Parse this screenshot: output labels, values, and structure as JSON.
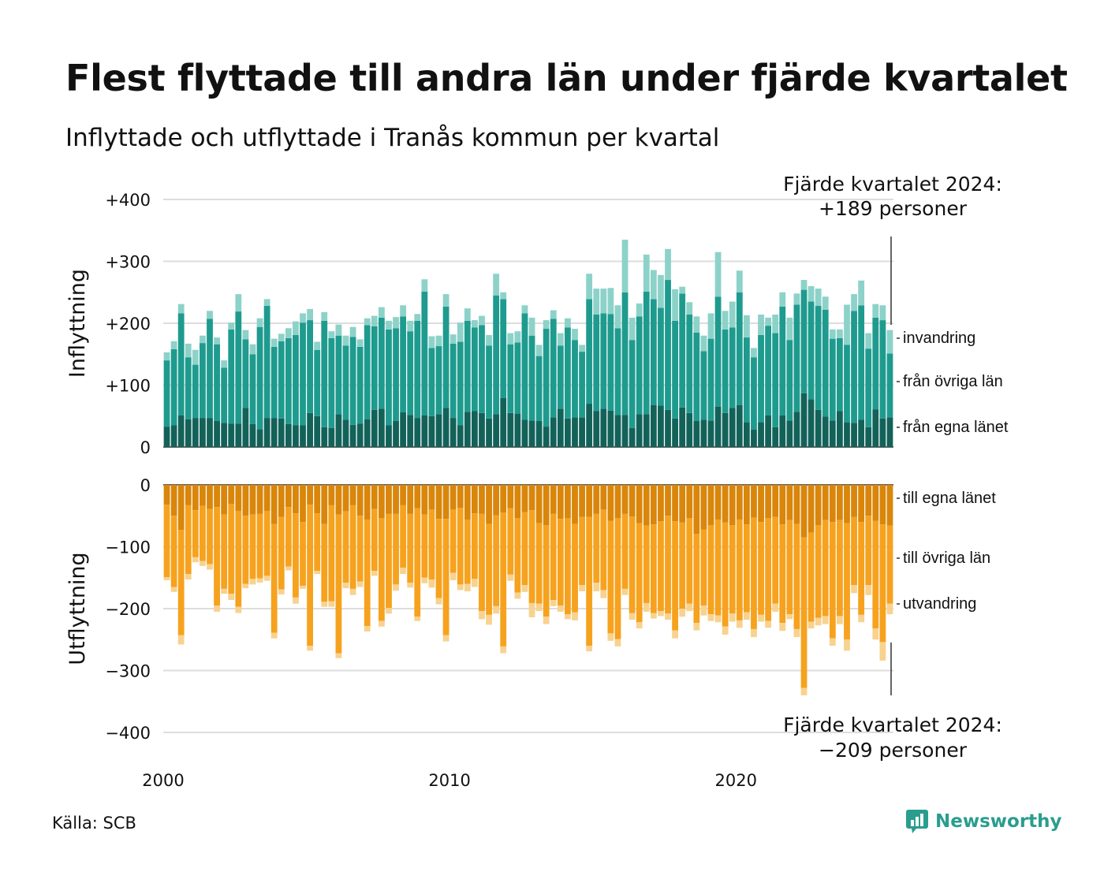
{
  "title": "Flest flyttade till andra län under fjärde kvartalet",
  "subtitle": "Inflyttade och utflyttade i Tranås kommun per kvartal",
  "source": "Källa: SCB",
  "logo": {
    "icon": "newsworthy-logo-icon",
    "text": "Newsworthy"
  },
  "colors": {
    "in_own": "#13625a",
    "in_other": "#1e9b8e",
    "in_imm": "#8dd2c9",
    "out_own": "#d9860b",
    "out_other": "#f6a21e",
    "out_emig": "#f8d28f",
    "grid": "#dddddd"
  },
  "chart_data": {
    "type": "bar",
    "stacked": true,
    "x_start_year": 2000,
    "periods_per_year": 4,
    "x_ticks": [
      "2000",
      "2010",
      "2020"
    ],
    "panels": [
      {
        "id": "in",
        "ylabel": "Inflyttning",
        "ylim": [
          0,
          400
        ],
        "y_ticks": [
          "0",
          "+100",
          "+200",
          "+300",
          "+400"
        ],
        "y_tick_values": [
          0,
          100,
          200,
          300,
          400
        ],
        "annotation": [
          "Fjärde kvartalet 2024:",
          "+189 personer"
        ],
        "series": [
          {
            "name": "från egna länet",
            "color": "#13625a",
            "values": [
              33,
              35,
              51,
              45,
              47,
              47,
              47,
              42,
              39,
              38,
              38,
              63,
              37,
              29,
              47,
              47,
              46,
              37,
              35,
              35,
              55,
              50,
              32,
              31,
              53,
              44,
              36,
              38,
              45,
              60,
              62,
              35,
              42,
              56,
              52,
              47,
              51,
              50,
              53,
              63,
              47,
              35,
              57,
              58,
              55,
              46,
              53,
              79,
              55,
              54,
              44,
              43,
              42,
              33,
              48,
              62,
              46,
              48,
              48,
              70,
              58,
              62,
              59,
              52,
              52,
              31,
              53,
              53,
              68,
              67,
              60,
              46,
              64,
              55,
              42,
              44,
              43,
              65,
              55,
              63,
              68,
              40,
              28,
              40,
              51,
              32,
              51,
              43,
              57,
              87,
              77,
              60,
              49,
              43,
              58,
              40,
              39,
              44,
              32,
              61,
              46,
              48
            ]
          },
          {
            "name": "från övriga län",
            "color": "#1e9b8e",
            "values": [
              107,
              123,
              165,
              100,
              86,
              121,
              160,
              124,
              89,
              152,
              181,
              111,
              113,
              165,
              181,
              115,
              125,
              139,
              146,
              166,
              150,
              107,
              172,
              145,
              127,
              120,
              142,
              124,
              152,
              135,
              147,
              155,
              150,
              155,
              135,
              157,
              200,
              110,
              110,
              164,
              120,
              135,
              147,
              135,
              142,
              118,
              192,
              160,
              111,
              115,
              172,
              137,
              105,
              158,
              159,
              102,
              147,
              125,
              106,
              169,
              156,
              154,
              156,
              140,
              198,
              142,
              158,
              198,
              171,
              158,
              210,
              158,
              184,
              159,
              143,
              111,
              132,
              178,
              135,
              130,
              182,
              137,
              117,
              141,
              145,
              152,
              176,
              130,
              173,
              167,
              158,
              168,
              173,
              132,
              118,
              125,
              181,
              185,
              127,
              148,
              159,
              103
            ]
          },
          {
            "name": "invandring",
            "color": "#8dd2c9",
            "values": [
              13,
              13,
              15,
              22,
              24,
              12,
              13,
              11,
              12,
              11,
              28,
              15,
              16,
              14,
              11,
              13,
              12,
              16,
              22,
              15,
              18,
              13,
              14,
              11,
              18,
              16,
              16,
              12,
              11,
              17,
              17,
              14,
              18,
              18,
              17,
              11,
              20,
              19,
              17,
              20,
              15,
              31,
              20,
              12,
              15,
              17,
              35,
              11,
              18,
              18,
              13,
              29,
              18,
              14,
              14,
              20,
              15,
              18,
              11,
              41,
              42,
              40,
              42,
              37,
              85,
              36,
              21,
              60,
              47,
              53,
              50,
              51,
              11,
              20,
              26,
              25,
              41,
              72,
              30,
              42,
              35,
              36,
              15,
              33,
              13,
              30,
              23,
              36,
              18,
              16,
              25,
              28,
              21,
              15,
              14,
              65,
              27,
              40,
              25,
              22,
              24,
              38
            ]
          }
        ]
      },
      {
        "id": "out",
        "ylabel": "Utflyttning",
        "ylim": [
          -400,
          0
        ],
        "y_ticks": [
          "0",
          "−100",
          "−200",
          "−300",
          "−400"
        ],
        "y_tick_values": [
          0,
          -100,
          -200,
          -300,
          -400
        ],
        "annotation": [
          "Fjärde kvartalet 2024:",
          "−209 personer"
        ],
        "series": [
          {
            "name": "till egna länet",
            "color": "#d9860b",
            "values": [
              -32,
              -50,
              -73,
              -33,
              -41,
              -34,
              -39,
              -36,
              -48,
              -31,
              -42,
              -50,
              -48,
              -47,
              -42,
              -63,
              -52,
              -36,
              -46,
              -60,
              -32,
              -46,
              -63,
              -33,
              -48,
              -43,
              -33,
              -50,
              -56,
              -39,
              -54,
              -47,
              -47,
              -33,
              -47,
              -38,
              -48,
              -40,
              -55,
              -55,
              -40,
              -37,
              -56,
              -46,
              -47,
              -63,
              -49,
              -45,
              -38,
              -54,
              -44,
              -41,
              -62,
              -65,
              -47,
              -55,
              -54,
              -63,
              -52,
              -52,
              -47,
              -40,
              -58,
              -54,
              -47,
              -51,
              -62,
              -66,
              -64,
              -59,
              -50,
              -59,
              -61,
              -54,
              -79,
              -72,
              -65,
              -56,
              -61,
              -65,
              -56,
              -64,
              -53,
              -60,
              -54,
              -52,
              -64,
              -57,
              -63,
              -85,
              -77,
              -65,
              -57,
              -60,
              -57,
              -62,
              -52,
              -60,
              -50,
              -58,
              -64,
              -66
            ]
          },
          {
            "name": "till övriga län",
            "color": "#f6a21e",
            "values": [
              -117,
              -115,
              -170,
              -111,
              -76,
              -89,
              -89,
              -159,
              -120,
              -145,
              -155,
              -110,
              -104,
              -104,
              -105,
              -176,
              -117,
              -96,
              -136,
              -103,
              -228,
              -93,
              -126,
              -155,
              -224,
              -115,
              -135,
              -106,
              -172,
              -100,
              -166,
              -152,
              -114,
              -101,
              -111,
              -175,
              -102,
              -113,
              -128,
              -188,
              -102,
              -124,
              -104,
              -106,
              -157,
              -147,
              -147,
              -216,
              -107,
              -120,
              -118,
              -150,
              -130,
              -148,
              -139,
              -140,
              -155,
              -143,
              -110,
              -208,
              -111,
              -130,
              -182,
              -195,
              -121,
              -156,
              -160,
              -125,
              -143,
              -145,
              -158,
              -176,
              -139,
              -138,
              -144,
              -123,
              -144,
              -155,
              -168,
              -143,
              -163,
              -142,
              -180,
              -150,
              -166,
              -140,
              -159,
              -152,
              -170,
              -243,
              -144,
              -150,
              -155,
              -188,
              -155,
              -188,
              -110,
              -150,
              -112,
              -174,
              -190,
              -126
            ]
          },
          {
            "name": "utvandring",
            "color": "#f8d28f",
            "values": [
              -5,
              -8,
              -15,
              -9,
              -8,
              -8,
              -9,
              -10,
              -8,
              -10,
              -10,
              -7,
              -9,
              -7,
              -8,
              -9,
              -8,
              -6,
              -10,
              -5,
              -8,
              -5,
              -8,
              -9,
              -8,
              -9,
              -10,
              -9,
              -9,
              -8,
              -9,
              -9,
              -10,
              -10,
              -8,
              -7,
              -9,
              -13,
              -10,
              -10,
              -12,
              -9,
              -12,
              -13,
              -13,
              -16,
              -12,
              -11,
              -10,
              -10,
              -11,
              -23,
              -12,
              -12,
              -10,
              -10,
              -8,
              -13,
              -10,
              -9,
              -14,
              -13,
              -12,
              -12,
              -10,
              -11,
              -10,
              -14,
              -9,
              -8,
              -10,
              -13,
              -13,
              -12,
              -12,
              -16,
              -11,
              -11,
              -13,
              -13,
              -12,
              -12,
              -13,
              -11,
              -11,
              -13,
              -13,
              -8,
              -13,
              -12,
              -11,
              -12,
              -13,
              -12,
              -13,
              -18,
              -13,
              -12,
              -16,
              -18,
              -30,
              -17
            ]
          }
        ]
      }
    ]
  }
}
